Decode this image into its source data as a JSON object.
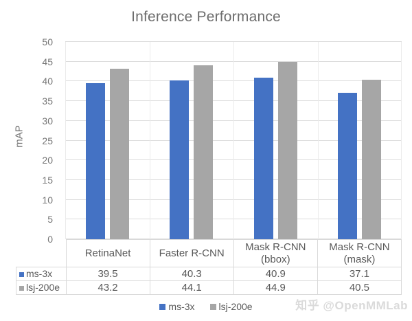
{
  "title": "Inference Performance",
  "watermark": "知乎 @OpenMMLab",
  "colors": {
    "series_blue": "#4472C4",
    "series_gray": "#A6A6A6",
    "gridline": "#DCDCDC",
    "axis_text": "#757575",
    "table_text": "#595959",
    "table_border": "#D9D9D9",
    "title_text": "#6D6D6D",
    "watermark_text": "#DADADA"
  },
  "chart_data": {
    "type": "bar",
    "title": "Inference Performance",
    "xlabel": "",
    "ylabel": "mAP",
    "ylim": [
      0,
      50
    ],
    "ytick_step": 5,
    "grid": true,
    "legend_position": "bottom",
    "categories": [
      "RetinaNet",
      "Faster R-CNN",
      "Mask R-CNN (bbox)",
      "Mask R-CNN (mask)"
    ],
    "series": [
      {
        "name": "ms-3x",
        "color": "#4472C4",
        "values": [
          39.5,
          40.3,
          40.9,
          37.1
        ]
      },
      {
        "name": "lsj-200e",
        "color": "#A6A6A6",
        "values": [
          43.2,
          44.1,
          44.9,
          40.5
        ]
      }
    ],
    "data_table_shown": true
  }
}
